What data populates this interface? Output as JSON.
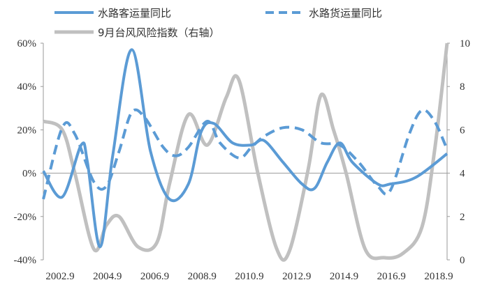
{
  "chart_data": {
    "type": "line",
    "legend_position": "top",
    "grid": false,
    "x_tick_labels": [
      "2002.9",
      "2004.9",
      "2006.9",
      "2008.9",
      "2010.9",
      "2012.9",
      "2014.9",
      "2016.9",
      "2018.9"
    ],
    "x_range": [
      2002.75,
      2018.75
    ],
    "y_left": {
      "range": [
        -40,
        60
      ],
      "ticks": [
        -40,
        -20,
        0,
        20,
        40,
        60
      ],
      "tick_labels": [
        "-40%",
        "-20%",
        "0%",
        "20%",
        "40%",
        "60%"
      ]
    },
    "y_right": {
      "range": [
        0,
        10
      ],
      "ticks": [
        0,
        2,
        4,
        6,
        8,
        10
      ],
      "tick_labels": [
        "0",
        "2",
        "4",
        "6",
        "8",
        "10"
      ]
    },
    "series": [
      {
        "name": "水路客运量同比",
        "axis": "left",
        "style": "solid",
        "color": "#5b9bd5",
        "points": [
          [
            2002.75,
            1
          ],
          [
            2003.5,
            -11
          ],
          [
            2004.25,
            13
          ],
          [
            2004.5,
            5
          ],
          [
            2005.0,
            -34
          ],
          [
            2005.5,
            8
          ],
          [
            2006.25,
            57
          ],
          [
            2007.0,
            10
          ],
          [
            2007.75,
            -12
          ],
          [
            2008.5,
            -5
          ],
          [
            2009.0,
            19
          ],
          [
            2009.5,
            23
          ],
          [
            2010.25,
            14
          ],
          [
            2011.0,
            13
          ],
          [
            2011.5,
            15
          ],
          [
            2012.25,
            5
          ],
          [
            2013.0,
            -5
          ],
          [
            2013.5,
            -7
          ],
          [
            2014.0,
            5
          ],
          [
            2014.5,
            14
          ],
          [
            2015.0,
            5
          ],
          [
            2016.0,
            -5
          ],
          [
            2016.5,
            -5
          ],
          [
            2017.5,
            -2
          ],
          [
            2018.75,
            9
          ]
        ]
      },
      {
        "name": "水路货运量同比",
        "axis": "left",
        "style": "dashed",
        "color": "#5b9bd5",
        "points": [
          [
            2002.75,
            -12
          ],
          [
            2003.5,
            21
          ],
          [
            2004.0,
            18
          ],
          [
            2004.75,
            -4
          ],
          [
            2005.25,
            -6
          ],
          [
            2005.75,
            10
          ],
          [
            2006.25,
            28
          ],
          [
            2006.75,
            26
          ],
          [
            2007.5,
            12
          ],
          [
            2008.0,
            8
          ],
          [
            2008.5,
            12
          ],
          [
            2009.25,
            24
          ],
          [
            2009.75,
            14
          ],
          [
            2010.5,
            7
          ],
          [
            2011.0,
            12
          ],
          [
            2011.5,
            17
          ],
          [
            2012.25,
            21
          ],
          [
            2013.0,
            20
          ],
          [
            2013.75,
            14
          ],
          [
            2014.5,
            13
          ],
          [
            2015.25,
            5
          ],
          [
            2016.0,
            -6
          ],
          [
            2016.5,
            -8
          ],
          [
            2017.25,
            18
          ],
          [
            2017.75,
            29
          ],
          [
            2018.25,
            24
          ],
          [
            2018.75,
            11
          ]
        ]
      },
      {
        "name": "9月台风风险指数（右轴）",
        "axis": "right",
        "style": "solid",
        "color": "#c0c0c0",
        "points": [
          [
            2002.75,
            6.4
          ],
          [
            2003.5,
            6.0
          ],
          [
            2004.0,
            4.0
          ],
          [
            2004.75,
            0.5
          ],
          [
            2005.25,
            1.6
          ],
          [
            2005.75,
            2.0
          ],
          [
            2006.5,
            0.6
          ],
          [
            2007.25,
            0.8
          ],
          [
            2007.75,
            3.5
          ],
          [
            2008.5,
            6.7
          ],
          [
            2009.25,
            5.3
          ],
          [
            2010.0,
            7.5
          ],
          [
            2010.5,
            8.3
          ],
          [
            2011.25,
            4.0
          ],
          [
            2012.0,
            0.5
          ],
          [
            2012.5,
            0.4
          ],
          [
            2013.25,
            4.2
          ],
          [
            2013.75,
            7.6
          ],
          [
            2014.25,
            6.0
          ],
          [
            2014.75,
            4.0
          ],
          [
            2015.5,
            0.5
          ],
          [
            2016.25,
            0.1
          ],
          [
            2017.0,
            0.3
          ],
          [
            2017.75,
            1.5
          ],
          [
            2018.25,
            5.0
          ],
          [
            2018.75,
            10.0
          ]
        ]
      }
    ]
  }
}
